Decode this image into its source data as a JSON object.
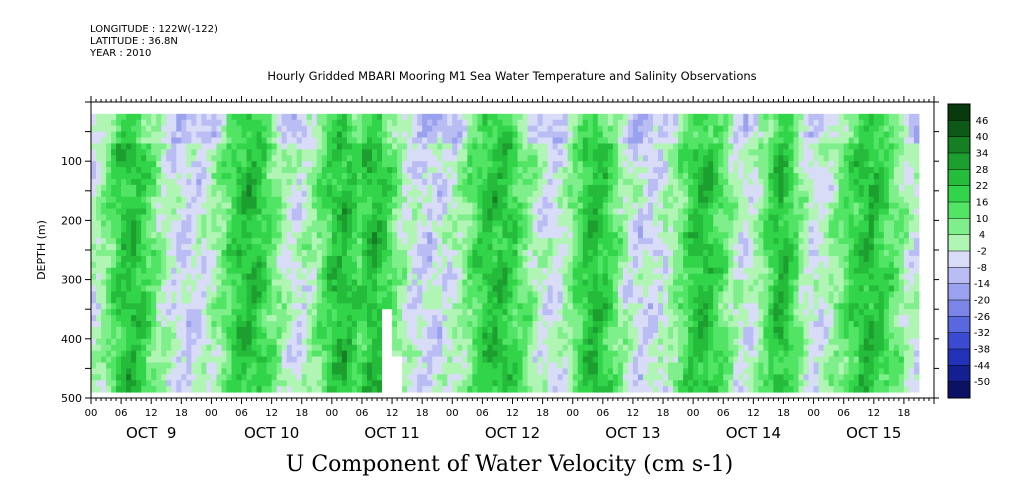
{
  "header": {
    "longitude": "LONGITUDE : 122W(-122)",
    "latitude": "LATITUDE : 36.8N",
    "year": "YEAR : 2010"
  },
  "chart_data": {
    "type": "heatmap",
    "title": "Hourly Gridded MBARI Mooring M1 Sea Water Temperature and Salinity Observations",
    "variable_label": "U Component of Water Velocity (cm s-1)",
    "ylabel": "DEPTH (m)",
    "yticks": [
      100,
      200,
      300,
      400,
      500
    ],
    "ylim": [
      0,
      500
    ],
    "y_inverted": true,
    "data_depth_range": [
      20,
      485
    ],
    "x_range_hours": [
      0,
      168
    ],
    "data_time_range_hours": [
      0,
      165
    ],
    "hour_tick_labels": [
      "00",
      "06",
      "12",
      "18"
    ],
    "day_labels": [
      "OCT  9",
      "OCT 10",
      "OCT 11",
      "OCT 12",
      "OCT 13",
      "OCT 14",
      "OCT 15"
    ],
    "colorbar": {
      "levels": [
        46,
        40,
        34,
        28,
        22,
        16,
        10,
        4,
        -2,
        -8,
        -14,
        -20,
        -26,
        -32,
        -38,
        -44,
        -50
      ],
      "colors": [
        "#083a0e",
        "#0d5a18",
        "#147f23",
        "#1c9f2f",
        "#25bb3b",
        "#32d54a",
        "#52e565",
        "#7eef8a",
        "#b1f5b4",
        "#d8dcf7",
        "#b9bdf4",
        "#9aa1ee",
        "#7b85e8",
        "#5a68df",
        "#3a4bd2",
        "#2232b8",
        "#141f92",
        "#0b1265"
      ]
    },
    "green_bands_hours": [
      [
        4,
        12
      ],
      [
        27,
        36
      ],
      [
        46,
        54
      ],
      [
        53,
        60
      ],
      [
        76,
        86
      ],
      [
        97,
        104
      ],
      [
        118,
        126
      ],
      [
        135,
        140
      ],
      [
        150,
        160
      ]
    ],
    "blank_region_hours": [
      [
        58,
        62
      ]
    ],
    "pattern": "alternating vertical bands of positive (green) and negative (blue) U velocity with semidiurnal tidal period"
  }
}
